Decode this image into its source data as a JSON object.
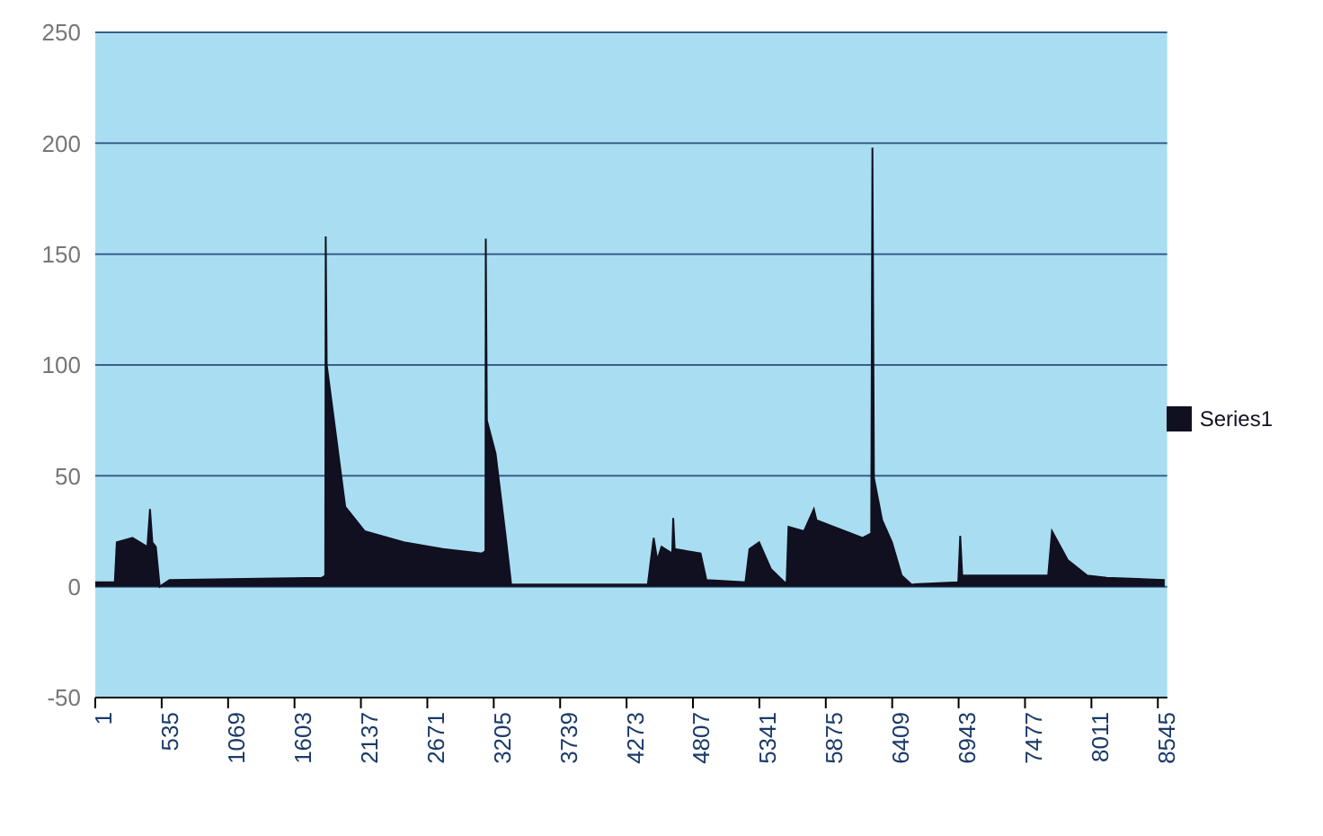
{
  "chart_data": {
    "type": "area",
    "x": [
      1,
      158,
      174,
      300,
      420,
      441,
      460,
      488,
      519,
      598,
      1822,
      1850,
      1854,
      1862,
      1932,
      2011,
      2168,
      2482,
      2796,
      3110,
      3138,
      3141,
      3150,
      3220,
      3298,
      3345,
      4444,
      4475,
      4491,
      4520,
      4554,
      4640,
      4648,
      4660,
      4868,
      4915,
      5229,
      5261,
      5339,
      5433,
      5543,
      5560,
      5575,
      5700,
      5779,
      5800,
      6171,
      6240,
      6250,
      6262,
      6328,
      6407,
      6485,
      6564,
      6940,
      6956,
      6972,
      7663,
      7694,
      7820,
      7977,
      8134,
      8600
    ],
    "series": [
      {
        "name": "Series1",
        "color": "#101020",
        "values": [
          2,
          2,
          20,
          22,
          18,
          35,
          20,
          18,
          0,
          3,
          4,
          5,
          158,
          100,
          70,
          36,
          25,
          20,
          17,
          15,
          16,
          157,
          75,
          60,
          24,
          1,
          1,
          15,
          22,
          12,
          18,
          15,
          31,
          17,
          15,
          3,
          2,
          17,
          20,
          8,
          2,
          2,
          27,
          25,
          35,
          30,
          22,
          24,
          198,
          49,
          30,
          20,
          5,
          1,
          2,
          23,
          5,
          5,
          25,
          12,
          5,
          4,
          3
        ]
      }
    ],
    "xlim": [
      1,
      8620
    ],
    "xticks": [
      1,
      535,
      1069,
      1603,
      2137,
      2671,
      3205,
      3739,
      4273,
      4807,
      5341,
      5875,
      6409,
      6943,
      7477,
      8011,
      8545
    ],
    "ylim": [
      -50,
      250
    ],
    "yticks": [
      -50,
      0,
      50,
      100,
      150,
      200,
      250
    ],
    "grid": "y",
    "legend": "right",
    "marker": "none"
  }
}
